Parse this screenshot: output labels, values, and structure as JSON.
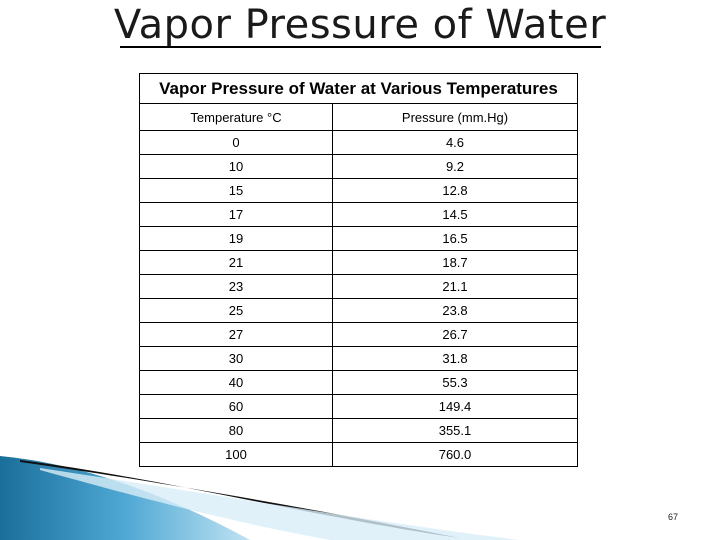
{
  "slide": {
    "title": "Vapor Pressure of Water",
    "page_number": "67"
  },
  "table": {
    "caption": "Vapor Pressure of Water at Various Temperatures",
    "headers": [
      "Temperature °C",
      "Pressure (mm.Hg)"
    ],
    "rows": [
      [
        "0",
        "4.6"
      ],
      [
        "10",
        "9.2"
      ],
      [
        "15",
        "12.8"
      ],
      [
        "17",
        "14.5"
      ],
      [
        "19",
        "16.5"
      ],
      [
        "21",
        "18.7"
      ],
      [
        "23",
        "21.1"
      ],
      [
        "25",
        "23.8"
      ],
      [
        "27",
        "26.7"
      ],
      [
        "30",
        "31.8"
      ],
      [
        "40",
        "55.3"
      ],
      [
        "60",
        "149.4"
      ],
      [
        "80",
        "355.1"
      ],
      [
        "100",
        "760.0"
      ]
    ]
  },
  "colors": {
    "swoosh_dark": "#1a6e9a",
    "swoosh_light": "#7cc6e6",
    "swoosh_black": "#111111"
  }
}
